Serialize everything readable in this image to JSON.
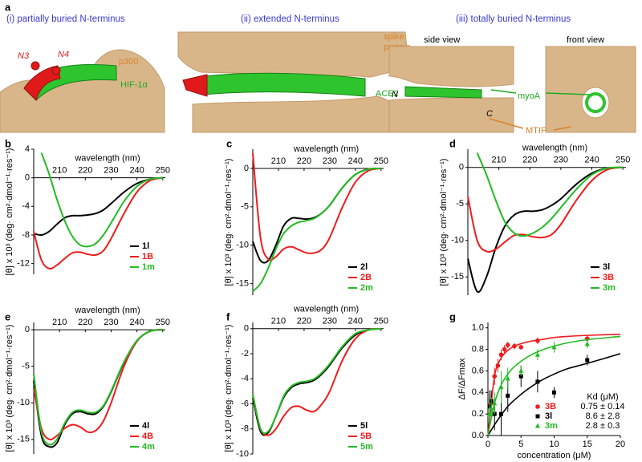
{
  "panel_a": {
    "label": "a",
    "titles": [
      "(i) partially buried N-terminus",
      "(ii) extended N-terminus",
      "(iii) totally buried N-terminus"
    ],
    "n3": "N3",
    "n4": "N4",
    "p300": "p300",
    "hif": "HIF-1α",
    "spike": [
      "spike",
      "protein"
    ],
    "ace2": "ACE2",
    "side_view": "side view",
    "front_view": "front view",
    "n": "N",
    "c": "C",
    "myoa": "myoA",
    "mtip": "MTIP"
  },
  "chart_data": [
    {
      "label": "b",
      "type": "line",
      "xlabel": "wavelength (nm)",
      "ylabel": "[θ] x 10³ (deg· cm²·dmol⁻¹·res⁻¹)",
      "x": [
        200,
        203,
        206,
        209,
        212,
        215,
        218,
        221,
        224,
        227,
        230,
        235,
        240,
        245,
        250
      ],
      "xlim": [
        200,
        251
      ],
      "xticks": [
        210,
        220,
        230,
        240,
        250
      ],
      "ylim": [
        -13.5,
        4
      ],
      "yticks": [
        4,
        0,
        -4,
        -8,
        -12
      ],
      "legend": "lower right",
      "series": [
        {
          "name": "1l",
          "color": "#000000",
          "values": [
            -7.8,
            -8.0,
            -7.5,
            -6.5,
            -5.6,
            -5.3,
            -5.3,
            -5.2,
            -5.0,
            -4.5,
            -3.6,
            -2.0,
            -0.8,
            -0.2,
            0
          ]
        },
        {
          "name": "1B",
          "color": "#ee1c1c",
          "values": [
            -7.5,
            -11.5,
            -12.7,
            -12.2,
            -11.3,
            -10.5,
            -10.4,
            -10.7,
            -10.8,
            -10.2,
            -8.5,
            -5.0,
            -2.0,
            -0.4,
            0
          ]
        },
        {
          "name": "1m",
          "color": "#22bb22",
          "values": [
            null,
            3.5,
            0.5,
            -3.0,
            -6.0,
            -8.2,
            -9.4,
            -9.6,
            -9.2,
            -8.0,
            -6.3,
            -3.3,
            -1.2,
            -0.2,
            0
          ]
        }
      ]
    },
    {
      "label": "c",
      "type": "line",
      "xlabel": "wavelength (nm)",
      "ylabel": "[θ] x 10³ (deg· cm²·dmol⁻¹·res⁻¹)",
      "x": [
        200,
        203,
        206,
        209,
        212,
        215,
        218,
        221,
        224,
        227,
        230,
        235,
        240,
        245,
        250
      ],
      "xlim": [
        200,
        251
      ],
      "xticks": [
        210,
        220,
        230,
        240,
        250
      ],
      "ylim": [
        -16.5,
        2.5
      ],
      "yticks": [
        0,
        -5,
        -10,
        -15
      ],
      "legend": "lower right",
      "series": [
        {
          "name": "2l",
          "color": "#000000",
          "values": [
            -9.5,
            -12.0,
            -12.0,
            -10.0,
            -7.5,
            -6.5,
            -6.5,
            -6.6,
            -6.4,
            -5.8,
            -4.8,
            -2.5,
            -0.8,
            -0.1,
            0
          ]
        },
        {
          "name": "2B",
          "color": "#ee1c1c",
          "values": [
            2.0,
            -9.0,
            -11.8,
            -11.5,
            -10.5,
            -10.2,
            -10.6,
            -11.0,
            -11.0,
            -10.5,
            -9.0,
            -5.0,
            -1.8,
            -0.3,
            0
          ]
        },
        {
          "name": "2m",
          "color": "#22bb22",
          "values": [
            -16.0,
            -15.0,
            -13.0,
            -10.5,
            -8.5,
            -7.5,
            -7.0,
            -6.8,
            -6.5,
            -5.8,
            -4.8,
            -2.5,
            -0.8,
            -0.1,
            0
          ]
        }
      ]
    },
    {
      "label": "d",
      "type": "line",
      "xlabel": "wavelength (nm)",
      "ylabel": "[θ] x 10³ (deg· cm²·dmol⁻¹·res⁻¹)",
      "x": [
        200,
        203,
        206,
        209,
        212,
        215,
        218,
        221,
        224,
        227,
        230,
        235,
        240,
        245,
        250
      ],
      "xlim": [
        200,
        251
      ],
      "xticks": [
        210,
        220,
        230,
        240,
        250
      ],
      "ylim": [
        -17.5,
        2.5
      ],
      "yticks": [
        0,
        -5,
        -10,
        -15
      ],
      "legend": "lower right",
      "series": [
        {
          "name": "3l",
          "color": "#000000",
          "values": [
            -12.5,
            -17.0,
            -15.0,
            -11.0,
            -8.0,
            -6.5,
            -6.0,
            -6.0,
            -5.8,
            -5.2,
            -4.3,
            -2.3,
            -0.8,
            -0.1,
            0
          ]
        },
        {
          "name": "3B",
          "color": "#ee1c1c",
          "values": [
            -4.0,
            -10.0,
            -11.5,
            -11.2,
            -10.2,
            -9.3,
            -9.2,
            -9.5,
            -9.6,
            -9.2,
            -7.8,
            -4.5,
            -1.8,
            -0.3,
            0
          ]
        },
        {
          "name": "3m",
          "color": "#22bb22",
          "values": [
            null,
            2.0,
            -1.0,
            -4.5,
            -7.5,
            -9.0,
            -9.4,
            -9.0,
            -8.2,
            -7.0,
            -5.5,
            -3.0,
            -1.0,
            -0.1,
            0
          ]
        }
      ]
    },
    {
      "label": "e",
      "type": "line",
      "xlabel": "wavelength (nm)",
      "ylabel": "[θ] x 10³ (deg· cm²·dmol⁻¹·res⁻¹)",
      "x": [
        200,
        203,
        206,
        209,
        212,
        215,
        218,
        221,
        224,
        227,
        230,
        235,
        240,
        245,
        250
      ],
      "xlim": [
        200,
        251
      ],
      "xticks": [
        210,
        220,
        230,
        240,
        250
      ],
      "ylim": [
        -17,
        1
      ],
      "yticks": [
        0,
        -5,
        -10,
        -15
      ],
      "legend": "lower right",
      "series": [
        {
          "name": "4l",
          "color": "#000000",
          "values": [
            -7.0,
            -14.5,
            -16.0,
            -15.5,
            -13.0,
            -11.5,
            -11.2,
            -11.5,
            -11.5,
            -10.5,
            -8.5,
            -4.5,
            -1.5,
            -0.2,
            0
          ]
        },
        {
          "name": "4B",
          "color": "#ee1c1c",
          "values": [
            -8.0,
            -13.5,
            -15.0,
            -14.5,
            -13.5,
            -13.0,
            -13.3,
            -14.0,
            -13.8,
            -12.5,
            -10.0,
            -5.0,
            -1.6,
            -0.2,
            0
          ]
        },
        {
          "name": "4m",
          "color": "#22bb22",
          "values": [
            -6.0,
            -14.0,
            -15.7,
            -15.0,
            -12.8,
            -11.3,
            -11.0,
            -11.3,
            -11.3,
            -10.4,
            -8.4,
            -4.4,
            -1.5,
            -0.2,
            0
          ]
        }
      ]
    },
    {
      "label": "f",
      "type": "line",
      "xlabel": "wavelength (nm)",
      "ylabel": "[θ] x 10³ (deg· cm²·dmol⁻¹·res⁻¹)",
      "x": [
        200,
        203,
        206,
        209,
        212,
        215,
        218,
        221,
        224,
        227,
        230,
        235,
        240,
        245,
        250
      ],
      "xlim": [
        200,
        251
      ],
      "xticks": [
        210,
        220,
        230,
        240,
        250
      ],
      "ylim": [
        -10,
        0.5
      ],
      "yticks": [
        0,
        -2,
        -4,
        -6,
        -8,
        -10
      ],
      "legend": "lower right",
      "series": [
        {
          "name": "5l",
          "color": "#000000",
          "values": [
            -5.5,
            -8.2,
            -8.3,
            -7.0,
            -5.5,
            -4.7,
            -4.4,
            -4.3,
            -4.1,
            -3.6,
            -2.9,
            -1.5,
            -0.5,
            -0.1,
            0
          ]
        },
        {
          "name": "5B",
          "color": "#ee1c1c",
          "values": [
            -5.3,
            -8.0,
            -8.5,
            -8.0,
            -7.0,
            -6.3,
            -6.2,
            -6.5,
            -6.6,
            -6.0,
            -5.0,
            -2.5,
            -0.8,
            -0.1,
            0
          ]
        },
        {
          "name": "5m",
          "color": "#22bb22",
          "values": [
            -5.2,
            -8.0,
            -8.2,
            -7.0,
            -5.4,
            -4.6,
            -4.3,
            -4.2,
            -4.0,
            -3.5,
            -2.8,
            -1.4,
            -0.4,
            -0.1,
            0
          ]
        }
      ]
    },
    {
      "label": "g",
      "type": "scatter",
      "xlabel": "concentration (μM)",
      "ylabel": "ΔF/ΔFmax",
      "kd_header": "Kd (μM)",
      "xlim": [
        0,
        20
      ],
      "xticks": [
        0,
        5,
        10,
        15,
        20
      ],
      "ylim": [
        0,
        1.05
      ],
      "yticks": [
        {
          "value": 0,
          "label": "0.0"
        },
        {
          "value": 0.2,
          "label": "0.2"
        },
        {
          "value": 0.4,
          "label": "0.4"
        },
        {
          "value": 0.6,
          "label": "0.6"
        },
        {
          "value": 0.8,
          "label": "0.8"
        },
        {
          "value": 1.0,
          "label": "1.0"
        }
      ],
      "fit_x": [
        0,
        1,
        2,
        3,
        4,
        6,
        8,
        10,
        12,
        15,
        20
      ],
      "series": [
        {
          "name": "3B",
          "color": "#ee1c1c",
          "marker": "circle",
          "kd_label": "0.75 ± 0.14",
          "x": [
            0.25,
            0.5,
            1,
            1.5,
            2,
            2.5,
            3,
            4,
            5,
            7.5,
            15
          ],
          "values": [
            0.28,
            0.3,
            0.55,
            0.65,
            0.75,
            0.8,
            0.84,
            0.83,
            0.82,
            0.88,
            0.9
          ],
          "errors": [
            0.1,
            0.08,
            0.08,
            0.06,
            0.05,
            0.04,
            0.03,
            0.03,
            0.02,
            0.03,
            0.03
          ],
          "fit_values": [
            0,
            0.55,
            0.72,
            0.79,
            0.83,
            0.87,
            0.89,
            0.91,
            0.92,
            0.93,
            0.94
          ]
        },
        {
          "name": "3l",
          "color": "#000000",
          "marker": "square",
          "kd_label": "8.6 ± 2.8",
          "x": [
            0.25,
            0.5,
            1,
            2,
            3,
            5,
            7.5,
            10,
            15
          ],
          "values": [
            0.27,
            0.32,
            0.2,
            0.2,
            0.37,
            0.55,
            0.5,
            0.4,
            0.7
          ],
          "errors": [
            0.15,
            0.1,
            0.15,
            0.2,
            0.15,
            0.1,
            0.1,
            0.05,
            0.05
          ],
          "fit_values": [
            0,
            0.1,
            0.19,
            0.27,
            0.33,
            0.43,
            0.51,
            0.57,
            0.62,
            0.67,
            0.76
          ]
        },
        {
          "name": "3m",
          "color": "#22bb22",
          "marker": "triangle",
          "kd_label": "2.8 ± 0.3",
          "x": [
            0.25,
            0.5,
            1,
            2,
            3,
            5,
            7.5,
            10,
            15
          ],
          "values": [
            0.2,
            0.25,
            0.3,
            0.45,
            0.53,
            0.6,
            0.75,
            0.82,
            0.85
          ],
          "errors": [
            0.1,
            0.1,
            0.1,
            0.15,
            0.1,
            0.05,
            0.05,
            0.05,
            0.04
          ],
          "fit_values": [
            0,
            0.3,
            0.47,
            0.57,
            0.64,
            0.73,
            0.79,
            0.83,
            0.86,
            0.89,
            0.92
          ]
        }
      ]
    }
  ]
}
